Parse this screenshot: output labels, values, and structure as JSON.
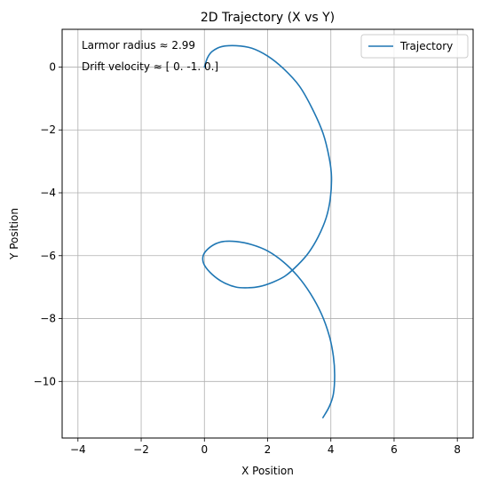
{
  "chart_data": {
    "type": "line",
    "title": "2D Trajectory (X vs Y)",
    "xlabel": "X Position",
    "ylabel": "Y Position",
    "xlim": [
      -4.5,
      8.5
    ],
    "ylim": [
      -11.8,
      1.2
    ],
    "xticks": [
      -4,
      -2,
      0,
      2,
      4,
      6,
      8
    ],
    "yticks": [
      0,
      -2,
      -4,
      -6,
      -8,
      -10
    ],
    "xtick_labels": [
      "−4",
      "−2",
      "0",
      "2",
      "4",
      "6",
      "8"
    ],
    "ytick_labels": [
      "0",
      "−2",
      "−4",
      "−6",
      "−8",
      "−10"
    ],
    "grid": true,
    "legend": {
      "placement": "top-right",
      "entries": [
        "Trajectory"
      ]
    },
    "annotations": [
      "Larmor radius ≈ 2.99",
      "Drift velocity ≈ [ 0. -1.  0.]"
    ],
    "series": [
      {
        "name": "Trajectory",
        "color": "#1f77b4",
        "x": [
          0.0,
          0.1,
          0.25,
          0.55,
          1.0,
          1.5,
          2.0,
          2.5,
          3.0,
          3.4,
          3.75,
          3.95,
          4.02,
          3.98,
          3.85,
          3.6,
          3.3,
          2.95,
          2.55,
          2.15,
          1.75,
          1.4,
          1.0,
          0.6,
          0.25,
          0.0,
          -0.05,
          0.05,
          0.3,
          0.6,
          1.0,
          1.5,
          2.0,
          2.5,
          2.95,
          3.35,
          3.7,
          3.95,
          4.08,
          4.12,
          4.08,
          3.95,
          3.75
        ],
        "y": [
          0.0,
          0.3,
          0.5,
          0.65,
          0.68,
          0.6,
          0.35,
          -0.05,
          -0.6,
          -1.3,
          -2.1,
          -2.9,
          -3.5,
          -4.2,
          -4.8,
          -5.4,
          -5.9,
          -6.3,
          -6.65,
          -6.85,
          -6.98,
          -7.02,
          -7.0,
          -6.85,
          -6.6,
          -6.3,
          -6.05,
          -5.85,
          -5.65,
          -5.55,
          -5.55,
          -5.65,
          -5.85,
          -6.2,
          -6.65,
          -7.2,
          -7.85,
          -8.55,
          -9.2,
          -9.8,
          -10.4,
          -10.8,
          -11.15
        ]
      }
    ]
  }
}
